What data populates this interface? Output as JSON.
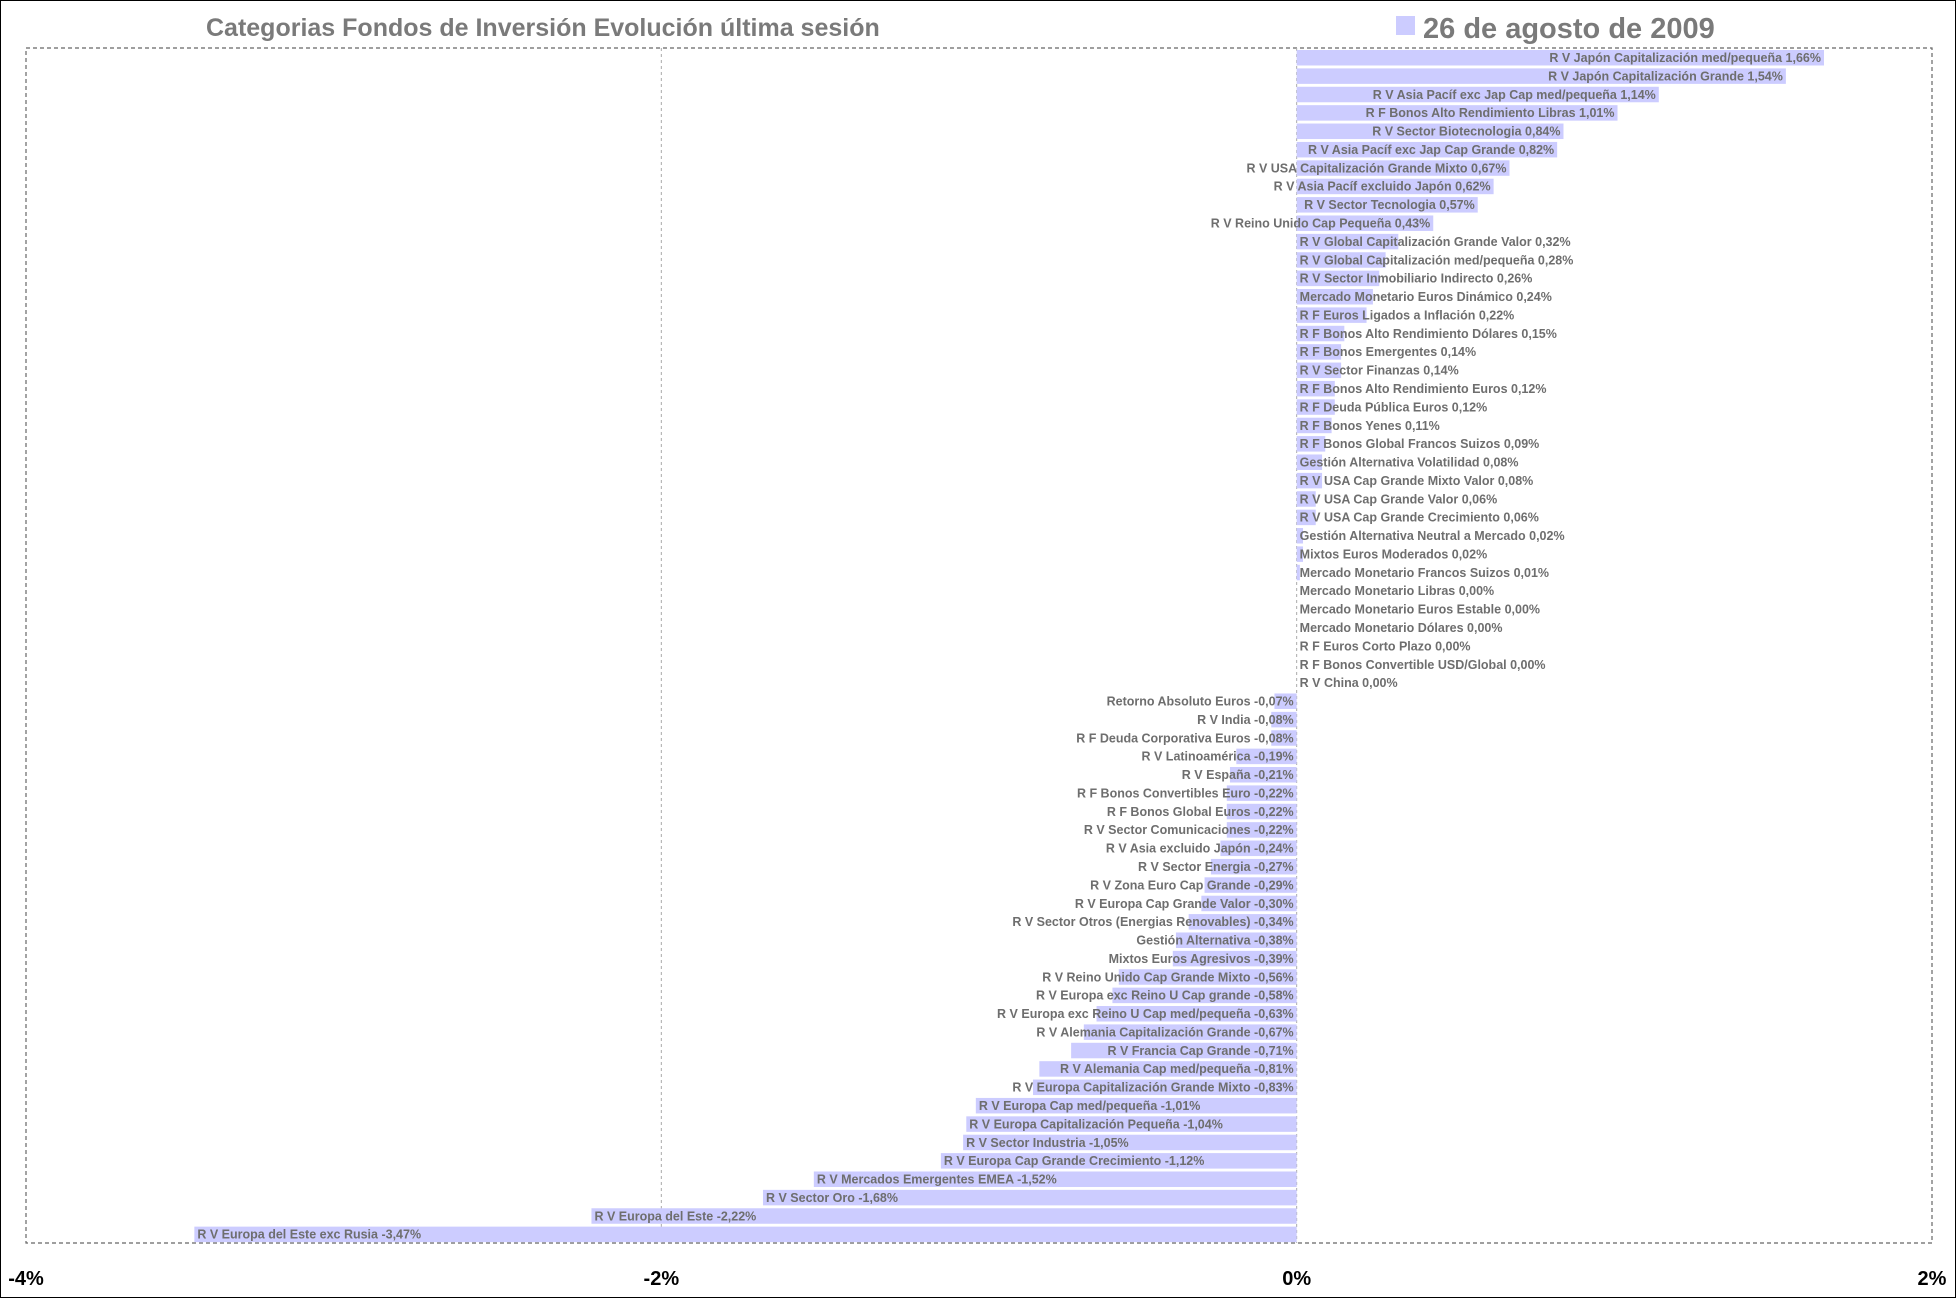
{
  "chart_data": {
    "type": "bar",
    "orientation": "horizontal",
    "title": "Categorias Fondos de Inversión Evolución última sesión",
    "legend_position": "top-right",
    "series": [
      {
        "name": "26 de agosto de 2009",
        "color": "#ccccff"
      }
    ],
    "xlim": [
      -4,
      2
    ],
    "x_ticks": [
      "-4%",
      "-2%",
      "0%",
      "2%"
    ],
    "x_tick_values": [
      -4,
      -2,
      0,
      2
    ],
    "grid": {
      "vertical": true,
      "style": "dashed"
    },
    "colors": {
      "bar": "#ccccff",
      "label": "#6e6e6e",
      "grid": "#aaaaaa",
      "border": "#666666"
    },
    "bars": [
      {
        "label": "R V Japón Capitalización med/pequeña 1,66%",
        "value": 1.66
      },
      {
        "label": "R V Japón Capitalización Grande 1,54%",
        "value": 1.54
      },
      {
        "label": "R V Asia Pacíf exc Jap Cap med/pequeña 1,14%",
        "value": 1.14
      },
      {
        "label": "R F Bonos Alto Rendimiento Libras 1,01%",
        "value": 1.01
      },
      {
        "label": "R V Sector Biotecnologia 0,84%",
        "value": 0.84
      },
      {
        "label": "R V Asia Pacíf exc Jap Cap Grande 0,82%",
        "value": 0.82
      },
      {
        "label": "R V USA Capitalización Grande Mixto 0,67%",
        "value": 0.67
      },
      {
        "label": "R V Asia Pacíf excluido Japón 0,62%",
        "value": 0.62
      },
      {
        "label": "R V Sector Tecnologia 0,57%",
        "value": 0.57
      },
      {
        "label": "R V Reino Unido Cap Pequeña 0,43%",
        "value": 0.43
      },
      {
        "label": "R V Global Capitalización Grande Valor 0,32%",
        "value": 0.32
      },
      {
        "label": "R V Global Capitalización med/pequeña 0,28%",
        "value": 0.28
      },
      {
        "label": "R V Sector Inmobiliario Indirecto 0,26%",
        "value": 0.26
      },
      {
        "label": "Mercado Monetario Euros Dinámico 0,24%",
        "value": 0.24
      },
      {
        "label": "R F Euros Ligados a Inflación 0,22%",
        "value": 0.22
      },
      {
        "label": "R F Bonos Alto Rendimiento Dólares 0,15%",
        "value": 0.15
      },
      {
        "label": "R F Bonos Emergentes 0,14%",
        "value": 0.14
      },
      {
        "label": "R V Sector Finanzas 0,14%",
        "value": 0.14
      },
      {
        "label": "R F Bonos Alto Rendimiento Euros 0,12%",
        "value": 0.12
      },
      {
        "label": "R F Deuda Pública Euros 0,12%",
        "value": 0.12
      },
      {
        "label": "R F Bonos Yenes 0,11%",
        "value": 0.11
      },
      {
        "label": "R F Bonos Global Francos Suizos 0,09%",
        "value": 0.09
      },
      {
        "label": "Gestión Alternativa Volatilidad 0,08%",
        "value": 0.08
      },
      {
        "label": "R V USA Cap Grande Mixto Valor 0,08%",
        "value": 0.08
      },
      {
        "label": "R V USA Cap Grande Valor 0,06%",
        "value": 0.06
      },
      {
        "label": "R V USA Cap Grande Crecimiento 0,06%",
        "value": 0.06
      },
      {
        "label": "Gestión Alternativa Neutral a Mercado 0,02%",
        "value": 0.02
      },
      {
        "label": "Mixtos Euros Moderados 0,02%",
        "value": 0.02
      },
      {
        "label": "Mercado Monetario Francos Suizos 0,01%",
        "value": 0.01
      },
      {
        "label": "Mercado Monetario Libras 0,00%",
        "value": 0.0
      },
      {
        "label": "Mercado Monetario Euros Estable 0,00%",
        "value": 0.0
      },
      {
        "label": "Mercado Monetario Dólares 0,00%",
        "value": 0.0
      },
      {
        "label": "R F Euros Corto Plazo 0,00%",
        "value": 0.0
      },
      {
        "label": "R F Bonos Convertible USD/Global 0,00%",
        "value": 0.0
      },
      {
        "label": "R V China 0,00%",
        "value": 0.0
      },
      {
        "label": "Retorno Absoluto Euros -0,07%",
        "value": -0.07
      },
      {
        "label": "R V India -0,08%",
        "value": -0.08
      },
      {
        "label": "R F Deuda Corporativa Euros -0,08%",
        "value": -0.08
      },
      {
        "label": "R V Latinoamérica -0,19%",
        "value": -0.19
      },
      {
        "label": "R V España -0,21%",
        "value": -0.21
      },
      {
        "label": "R F Bonos Convertibles Euro -0,22%",
        "value": -0.22
      },
      {
        "label": "R F Bonos Global Euros -0,22%",
        "value": -0.22
      },
      {
        "label": "R V Sector Comunicaciones -0,22%",
        "value": -0.22
      },
      {
        "label": "R V Asia excluido Japón -0,24%",
        "value": -0.24
      },
      {
        "label": "R V Sector Energia -0,27%",
        "value": -0.27
      },
      {
        "label": "R V Zona Euro Cap Grande -0,29%",
        "value": -0.29
      },
      {
        "label": "R V Europa Cap Grande Valor -0,30%",
        "value": -0.3
      },
      {
        "label": "R V Sector Otros (Energias Renovables) -0,34%",
        "value": -0.34
      },
      {
        "label": "Gestión Alternativa -0,38%",
        "value": -0.38
      },
      {
        "label": "Mixtos Euros Agresivos -0,39%",
        "value": -0.39
      },
      {
        "label": "R V Reino Unido Cap Grande Mixto -0,56%",
        "value": -0.56
      },
      {
        "label": "R V Europa exc Reino U Cap grande -0,58%",
        "value": -0.58
      },
      {
        "label": "R V Europa exc Reino U Cap med/pequeña -0,63%",
        "value": -0.63
      },
      {
        "label": "R V Alemania Capitalización Grande -0,67%",
        "value": -0.67
      },
      {
        "label": "R V Francia Cap Grande -0,71%",
        "value": -0.71
      },
      {
        "label": "R V Alemania Cap med/pequeña -0,81%",
        "value": -0.81
      },
      {
        "label": "R V Europa Capitalización Grande Mixto -0,83%",
        "value": -0.83
      },
      {
        "label": "R V Europa Cap med/pequeña -1,01%",
        "value": -1.01
      },
      {
        "label": "R V Europa Capitalización Pequeña -1,04%",
        "value": -1.04
      },
      {
        "label": "R V Sector Industria -1,05%",
        "value": -1.05
      },
      {
        "label": "R V Europa Cap Grande Crecimiento -1,12%",
        "value": -1.12
      },
      {
        "label": "R V Mercados Emergentes EMEA -1,52%",
        "value": -1.52
      },
      {
        "label": "R V Sector Oro -1,68%",
        "value": -1.68
      },
      {
        "label": "R V Europa del Este -2,22%",
        "value": -2.22
      },
      {
        "label": "R V Europa del Este exc Rusia -3,47%",
        "value": -3.47
      }
    ]
  }
}
